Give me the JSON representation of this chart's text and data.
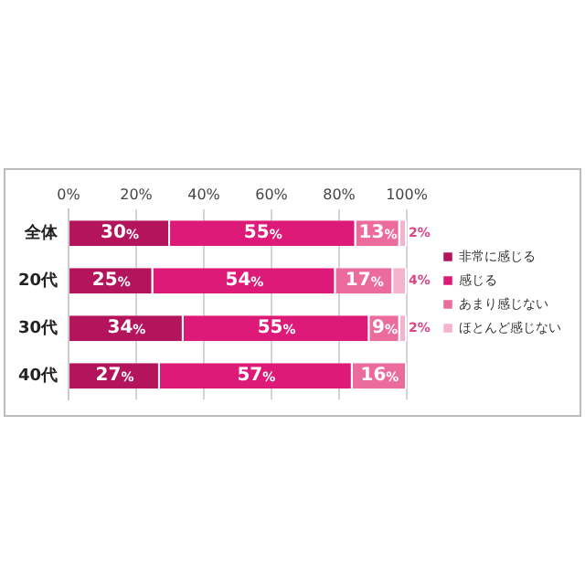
{
  "chart_data": {
    "type": "bar",
    "orientation": "horizontal",
    "stacked": true,
    "categories": [
      "全体",
      "20代",
      "30代",
      "40代"
    ],
    "series": [
      {
        "name": "非常に感じる",
        "color": "#b3145c",
        "values": [
          30,
          25,
          34,
          27
        ],
        "value_labels": [
          "30%",
          "25%",
          "34%",
          "27%"
        ]
      },
      {
        "name": "感じる",
        "color": "#dd1a78",
        "values": [
          55,
          54,
          55,
          57
        ],
        "value_labels": [
          "55%",
          "54%",
          "55%",
          "57%"
        ]
      },
      {
        "name": "あまり感じない",
        "color": "#ec6b9d",
        "values": [
          13,
          17,
          9,
          16
        ],
        "value_labels": [
          "13%",
          "17%",
          "9%",
          "16%"
        ]
      },
      {
        "name": "ほとんど感じない",
        "color": "#f4b3cd",
        "values": [
          2,
          4,
          2,
          null
        ],
        "value_labels": [
          "2%",
          "4%",
          "2%",
          null
        ]
      }
    ],
    "xlim": [
      0,
      100
    ],
    "xticks": [
      {
        "value": 0,
        "label": "0%"
      },
      {
        "value": 20,
        "label": "20%"
      },
      {
        "value": 40,
        "label": "40%"
      },
      {
        "value": 60,
        "label": "60%"
      },
      {
        "value": 80,
        "label": "80%"
      },
      {
        "value": 100,
        "label": "100%"
      }
    ],
    "grid": "x",
    "legend": "right"
  }
}
